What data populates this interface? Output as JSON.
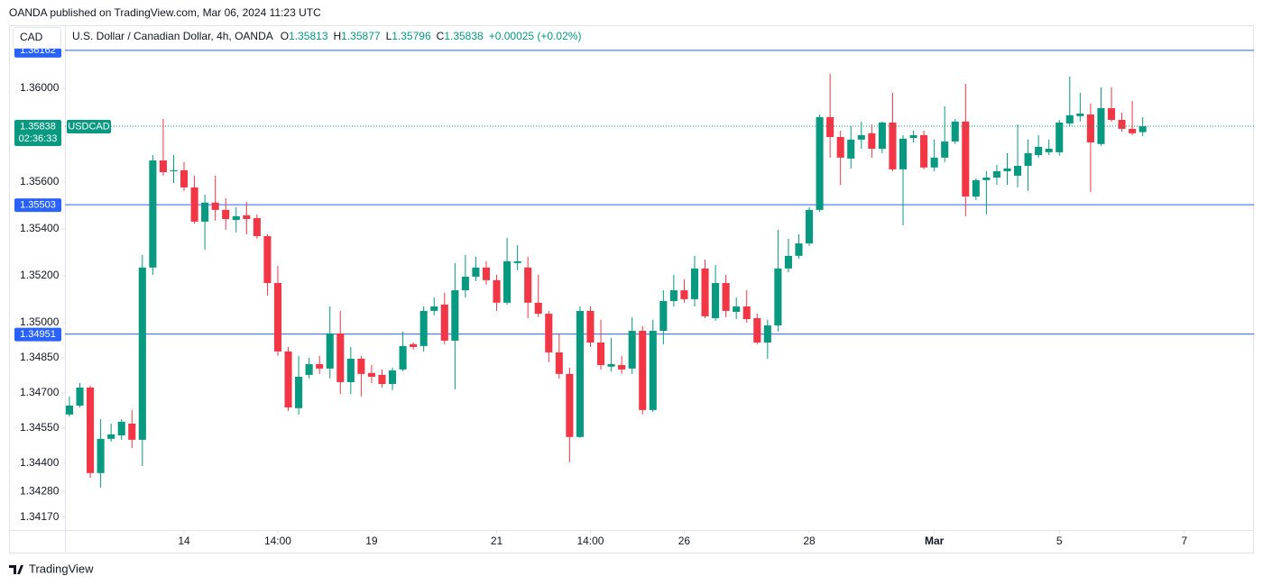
{
  "header": {
    "published": "OANDA published on TradingView.com, Mar 06, 2024 11:23 UTC"
  },
  "footer": {
    "brand": "TradingView"
  },
  "chart_data": {
    "type": "candlestick",
    "currency": "CAD",
    "symbol_title": "U.S. Dollar / Canadian Dollar, 4h, OANDA",
    "ohlc_legend": [
      {
        "label": "O",
        "value": 1.35813
      },
      {
        "label": "H",
        "value": 1.35877
      },
      {
        "label": "L",
        "value": 1.35796
      },
      {
        "label": "C",
        "value": 1.35838
      }
    ],
    "change": "+0.00025 (+0.02%)",
    "symbol": "USDCAD",
    "last_price": 1.35838,
    "countdown": "02:36:33",
    "up_color": "#089981",
    "down_color": "#f23645",
    "level_color": "#2962ff",
    "levels": [
      1.36162,
      1.35503,
      1.34951
    ],
    "ylim": [
      1.34115,
      1.36269
    ],
    "yticks": [
      {
        "value": 1.36,
        "label": "1.36000"
      },
      {
        "value": 1.356,
        "label": "1.35600"
      },
      {
        "value": 1.354,
        "label": "1.35400"
      },
      {
        "value": 1.352,
        "label": "1.35200"
      },
      {
        "value": 1.35,
        "label": "1.35000"
      },
      {
        "value": 1.3485,
        "label": "1.34850"
      },
      {
        "value": 1.347,
        "label": "1.34700"
      },
      {
        "value": 1.3455,
        "label": "1.34550"
      },
      {
        "value": 1.344,
        "label": "1.34400"
      },
      {
        "value": 1.3428,
        "label": "1.34280"
      },
      {
        "value": 1.3417,
        "label": "1.34170"
      }
    ],
    "xlim": [
      -0.43,
      113.68
    ],
    "xticks": [
      {
        "value": 11,
        "label": "14"
      },
      {
        "value": 20,
        "label": "14:00"
      },
      {
        "value": 29,
        "label": "19"
      },
      {
        "value": 41,
        "label": "21"
      },
      {
        "value": 50,
        "label": "14:00"
      },
      {
        "value": 59,
        "label": "26"
      },
      {
        "value": 71,
        "label": "28"
      },
      {
        "value": 83,
        "label": "Mar"
      },
      {
        "value": 95,
        "label": "5"
      },
      {
        "value": 107,
        "label": "7"
      }
    ],
    "open": [
      1.34608,
      1.34646,
      1.34723,
      1.34358,
      1.34504,
      1.34519,
      1.34569,
      1.345,
      1.35235,
      1.35692,
      1.35646,
      1.3565,
      1.35577,
      1.35431,
      1.35512,
      1.35481,
      1.35438,
      1.35458,
      1.35446,
      1.35369,
      1.35169,
      1.34877,
      1.34635,
      1.34777,
      1.34823,
      1.34804,
      1.34954,
      1.34746,
      1.34846,
      1.34785,
      1.34777,
      1.34738,
      1.348,
      1.34908,
      1.349,
      1.3505,
      1.35077,
      1.34923,
      1.35138,
      1.35196,
      1.35235,
      1.35181,
      1.35085,
      1.35254,
      1.35235,
      1.35085,
      1.35038,
      1.34873,
      1.34781,
      1.34512,
      1.3505,
      1.34915,
      1.34812,
      1.34819,
      1.34804,
      1.34965,
      1.34627,
      1.34965,
      1.35092,
      1.35138,
      1.351,
      1.35231,
      1.35019,
      1.35169,
      1.35046,
      1.35069,
      1.35019,
      1.34915,
      1.34988,
      1.35231,
      1.35285,
      1.35338,
      1.35481,
      1.35877,
      1.35792,
      1.357,
      1.35781,
      1.35808,
      1.35742,
      1.35854,
      1.35654,
      1.35788,
      1.358,
      1.35662,
      1.35704,
      1.35773,
      1.35858,
      1.35538,
      1.35608,
      1.35619,
      1.35646,
      1.35627,
      1.35669,
      1.35715,
      1.35727,
      1.35727,
      1.3585,
      1.35881,
      1.35888,
      1.35762,
      1.35915,
      1.35865,
      1.35827,
      1.35813
    ],
    "high": [
      1.34685,
      1.34742,
      1.34731,
      1.34588,
      1.34569,
      1.34588,
      1.34627,
      1.35288,
      1.35715,
      1.35869,
      1.35715,
      1.35685,
      1.35627,
      1.35546,
      1.35627,
      1.35531,
      1.35492,
      1.35515,
      1.35462,
      1.35377,
      1.35242,
      1.34896,
      1.34858,
      1.3485,
      1.34858,
      1.35069,
      1.3505,
      1.34896,
      1.34858,
      1.34819,
      1.348,
      1.34808,
      1.34962,
      1.34915,
      1.35069,
      1.35108,
      1.35127,
      1.35254,
      1.35288,
      1.35281,
      1.35262,
      1.35204,
      1.35362,
      1.35331,
      1.35281,
      1.35204,
      1.3505,
      1.34954,
      1.34808,
      1.35069,
      1.35069,
      1.35012,
      1.34935,
      1.34858,
      1.35023,
      1.34985,
      1.35012,
      1.35138,
      1.35204,
      1.35185,
      1.35285,
      1.35269,
      1.35246,
      1.35204,
      1.35108,
      1.35138,
      1.35038,
      1.35012,
      1.35396,
      1.35358,
      1.35377,
      1.35492,
      1.35888,
      1.36062,
      1.35819,
      1.35838,
      1.35858,
      1.35846,
      1.35858,
      1.35981,
      1.358,
      1.35819,
      1.35819,
      1.35781,
      1.35923,
      1.35869,
      1.36019,
      1.35615,
      1.35646,
      1.35673,
      1.35723,
      1.35846,
      1.35781,
      1.358,
      1.35781,
      1.35865,
      1.3605,
      1.35981,
      1.35935,
      1.36004,
      1.36004,
      1.35896,
      1.35946,
      1.35877
    ],
    "low": [
      1.346,
      1.34638,
      1.34338,
      1.34296,
      1.34492,
      1.345,
      1.34465,
      1.34388,
      1.35204,
      1.35627,
      1.35596,
      1.35562,
      1.35423,
      1.35312,
      1.35435,
      1.35396,
      1.35385,
      1.35377,
      1.35358,
      1.35115,
      1.34858,
      1.34623,
      1.34608,
      1.34762,
      1.34781,
      1.34762,
      1.34696,
      1.34696,
      1.34685,
      1.34742,
      1.34723,
      1.34712,
      1.34792,
      1.34885,
      1.34877,
      1.35031,
      1.34908,
      1.34715,
      1.35108,
      1.35177,
      1.35162,
      1.3505,
      1.35077,
      1.35223,
      1.35019,
      1.35023,
      1.34831,
      1.34762,
      1.34404,
      1.34508,
      1.34896,
      1.348,
      1.34792,
      1.34781,
      1.34781,
      1.34608,
      1.34619,
      1.34908,
      1.35069,
      1.35085,
      1.35069,
      1.35019,
      1.35008,
      1.35023,
      1.35015,
      1.35,
      1.34908,
      1.34846,
      1.34962,
      1.35215,
      1.35273,
      1.35327,
      1.35473,
      1.35704,
      1.35588,
      1.35658,
      1.35742,
      1.35704,
      1.35723,
      1.35646,
      1.35415,
      1.35769,
      1.35654,
      1.35646,
      1.35685,
      1.35762,
      1.35454,
      1.35523,
      1.35462,
      1.35588,
      1.35588,
      1.35577,
      1.35562,
      1.35704,
      1.35715,
      1.35712,
      1.35838,
      1.35858,
      1.35558,
      1.35754,
      1.35858,
      1.35815,
      1.358,
      1.35796
    ],
    "close": [
      1.34646,
      1.34723,
      1.34358,
      1.34504,
      1.34523,
      1.34577,
      1.345,
      1.35235,
      1.35692,
      1.35642,
      1.3565,
      1.35577,
      1.35431,
      1.35512,
      1.35481,
      1.35442,
      1.35454,
      1.35442,
      1.35369,
      1.35169,
      1.34877,
      1.34638,
      1.34769,
      1.34823,
      1.34804,
      1.34954,
      1.34746,
      1.34846,
      1.34781,
      1.34769,
      1.34738,
      1.34796,
      1.349,
      1.34896,
      1.3505,
      1.35069,
      1.34923,
      1.35138,
      1.35196,
      1.35235,
      1.35181,
      1.35085,
      1.35262,
      1.35262,
      1.35085,
      1.35038,
      1.34873,
      1.34781,
      1.34512,
      1.3505,
      1.34915,
      1.34819,
      1.34823,
      1.348,
      1.34965,
      1.34627,
      1.34965,
      1.35092,
      1.35138,
      1.351,
      1.35231,
      1.35027,
      1.35169,
      1.3505,
      1.35069,
      1.35015,
      1.34915,
      1.34988,
      1.35231,
      1.35285,
      1.35338,
      1.35481,
      1.35877,
      1.35792,
      1.35704,
      1.35781,
      1.358,
      1.35742,
      1.35854,
      1.35654,
      1.35785,
      1.358,
      1.35662,
      1.35704,
      1.35773,
      1.35858,
      1.35538,
      1.35608,
      1.35619,
      1.35646,
      1.35658,
      1.35669,
      1.35723,
      1.3575,
      1.35742,
      1.35854,
      1.35885,
      1.35892,
      1.35769,
      1.35915,
      1.35865,
      1.35827,
      1.35808,
      1.35838
    ]
  }
}
